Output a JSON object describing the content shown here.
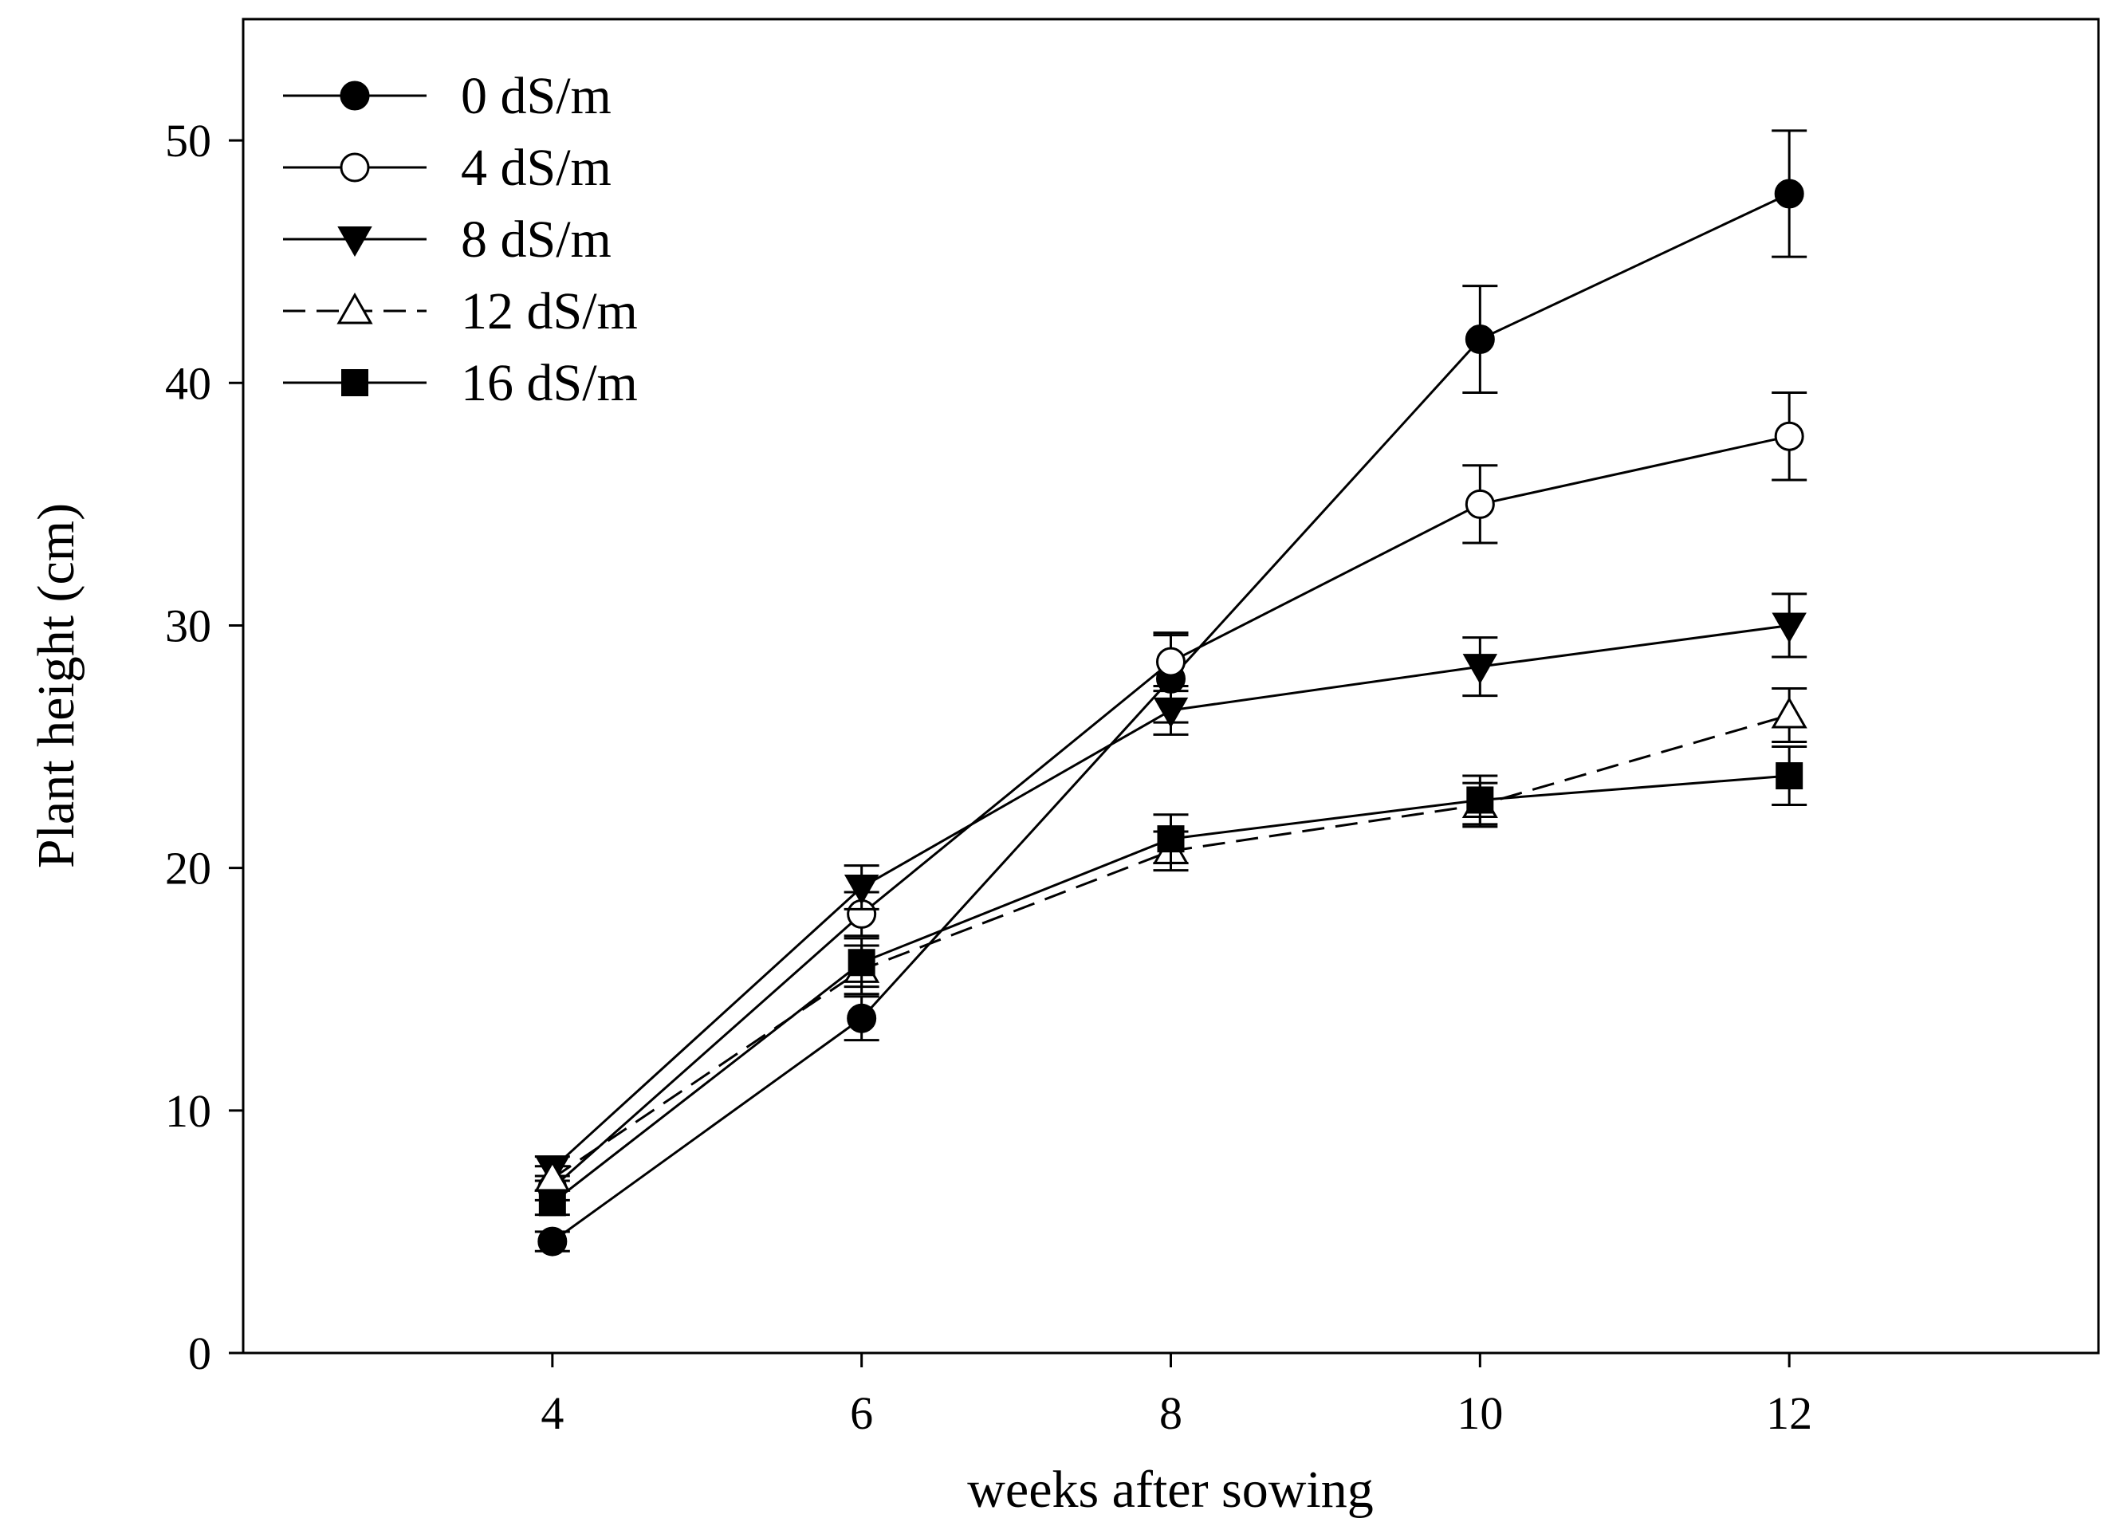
{
  "chart_data": {
    "type": "line",
    "title": "",
    "xlabel": "weeks after sowing",
    "ylabel": "Plant height (cm)",
    "xlim": [
      2,
      14
    ],
    "ylim": [
      0,
      55
    ],
    "x": [
      4,
      6,
      8,
      10,
      12
    ],
    "xticks": [
      "4",
      "6",
      "8",
      "10",
      "12"
    ],
    "yticks": [
      "0",
      "10",
      "20",
      "30",
      "40",
      "50"
    ],
    "grid": false,
    "legend_position": "top-left",
    "series": [
      {
        "name": "0 dS/m",
        "marker": "filled-circle",
        "line": "solid",
        "values": [
          4.6,
          13.8,
          27.8,
          41.8,
          47.8
        ],
        "errors": [
          0.4,
          0.9,
          1.8,
          2.2,
          2.6
        ]
      },
      {
        "name": "4 dS/m",
        "marker": "open-circle",
        "line": "solid",
        "values": [
          6.8,
          18.1,
          28.5,
          35.0,
          37.8
        ],
        "errors": [
          0.5,
          0.9,
          1.2,
          1.6,
          1.8
        ]
      },
      {
        "name": "8 dS/m",
        "marker": "filled-triangle-down",
        "line": "solid",
        "values": [
          7.6,
          19.2,
          26.5,
          28.3,
          30.0
        ],
        "errors": [
          0.5,
          0.9,
          1.0,
          1.2,
          1.3
        ]
      },
      {
        "name": "12 dS/m",
        "marker": "open-triangle-up",
        "line": "dashed",
        "values": [
          7.2,
          15.8,
          20.7,
          22.6,
          26.3
        ],
        "errors": [
          0.5,
          1.0,
          0.8,
          0.9,
          1.1
        ]
      },
      {
        "name": "16 dS/m",
        "marker": "filled-square",
        "line": "solid",
        "values": [
          6.2,
          16.1,
          21.2,
          22.8,
          23.8
        ],
        "errors": [
          0.5,
          1.0,
          1.0,
          1.0,
          1.2
        ]
      }
    ]
  }
}
